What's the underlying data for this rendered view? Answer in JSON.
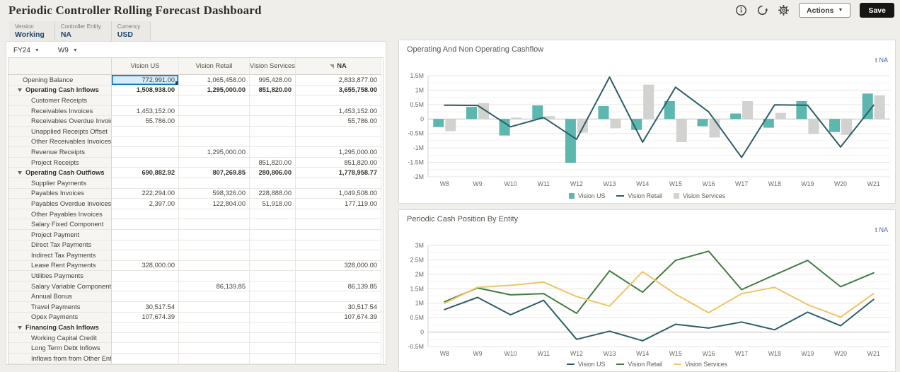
{
  "header": {
    "title": "Periodic Controller Rolling Forecast Dashboard",
    "actions_label": "Actions",
    "save_label": "Save"
  },
  "pov": {
    "fields": [
      {
        "label": "Version",
        "value": "Working"
      },
      {
        "label": "Controller Entity",
        "value": "NA"
      },
      {
        "label": "Currency",
        "value": "USD"
      }
    ]
  },
  "grid": {
    "year_selector": "FY24",
    "week_selector": "W9",
    "columns": [
      "Vision US",
      "Vision Retail",
      "Vision Services",
      "NA"
    ],
    "rows": [
      {
        "label": "Opening Balance",
        "type": "plain",
        "selected_col": 0,
        "values": [
          "772,991.00",
          "1,065,458.00",
          "995,428.00",
          "2,833,877.00"
        ]
      },
      {
        "label": "Operating Cash Inflows",
        "type": "parent",
        "values": [
          "1,508,938.00",
          "1,295,000.00",
          "851,820.00",
          "3,655,758.00"
        ]
      },
      {
        "label": "Customer Receipts",
        "type": "child",
        "values": [
          "",
          "",
          "",
          ""
        ]
      },
      {
        "label": "Receivables Invoices",
        "type": "child",
        "values": [
          "1,453,152.00",
          "",
          "",
          "1,453,152.00"
        ]
      },
      {
        "label": "Receivables Overdue Invoices",
        "type": "child",
        "values": [
          "55,786.00",
          "",
          "",
          "55,786.00"
        ]
      },
      {
        "label": "Unapplied Receipts Offset",
        "type": "child",
        "values": [
          "",
          "",
          "",
          ""
        ]
      },
      {
        "label": "Other Receivables Invoices",
        "type": "child",
        "values": [
          "",
          "",
          "",
          ""
        ]
      },
      {
        "label": "Revenue Receipts",
        "type": "child",
        "values": [
          "",
          "1,295,000.00",
          "",
          "1,295,000.00"
        ]
      },
      {
        "label": "Project Receipts",
        "type": "child",
        "values": [
          "",
          "",
          "851,820.00",
          "851,820.00"
        ]
      },
      {
        "label": "Operating Cash Outflows",
        "type": "parent",
        "values": [
          "690,882.92",
          "807,269.85",
          "280,806.00",
          "1,778,958.77"
        ]
      },
      {
        "label": "Supplier Payments",
        "type": "child",
        "values": [
          "",
          "",
          "",
          ""
        ]
      },
      {
        "label": "Payables Invoices",
        "type": "child",
        "values": [
          "222,294.00",
          "598,326.00",
          "228,888.00",
          "1,049,508.00"
        ]
      },
      {
        "label": "Payables Overdue Invoices",
        "type": "child",
        "values": [
          "2,397.00",
          "122,804.00",
          "51,918.00",
          "177,119.00"
        ]
      },
      {
        "label": "Other Payables Invoices",
        "type": "child",
        "values": [
          "",
          "",
          "",
          ""
        ]
      },
      {
        "label": "Salary Fixed Component",
        "type": "child",
        "values": [
          "",
          "",
          "",
          ""
        ]
      },
      {
        "label": "Project Payment",
        "type": "child",
        "values": [
          "",
          "",
          "",
          ""
        ]
      },
      {
        "label": "Direct Tax Payments",
        "type": "child",
        "values": [
          "",
          "",
          "",
          ""
        ]
      },
      {
        "label": "Indirect Tax Payments",
        "type": "child",
        "values": [
          "",
          "",
          "",
          ""
        ]
      },
      {
        "label": "Lease Rent Payments",
        "type": "child",
        "values": [
          "328,000.00",
          "",
          "",
          "328,000.00"
        ]
      },
      {
        "label": "Utilities Payments",
        "type": "child",
        "values": [
          "",
          "",
          "",
          ""
        ]
      },
      {
        "label": "Salary Variable Component",
        "type": "child",
        "values": [
          "",
          "86,139.85",
          "",
          "86,139.85"
        ]
      },
      {
        "label": "Annual Bonus",
        "type": "child",
        "values": [
          "",
          "",
          "",
          ""
        ]
      },
      {
        "label": "Travel Payments",
        "type": "child",
        "values": [
          "30,517.54",
          "",
          "",
          "30,517.54"
        ]
      },
      {
        "label": "Opex Payments",
        "type": "child",
        "values": [
          "107,674.39",
          "",
          "",
          "107,674.39"
        ]
      },
      {
        "label": "Financing Cash Inflows",
        "type": "parent",
        "values": [
          "",
          "",
          "",
          ""
        ]
      },
      {
        "label": "Working Capital Credit",
        "type": "child",
        "values": [
          "",
          "",
          "",
          ""
        ]
      },
      {
        "label": "Long Term Debt Inflows",
        "type": "child",
        "values": [
          "",
          "",
          "",
          ""
        ]
      },
      {
        "label": "Inflows from from Other Entities",
        "type": "child",
        "values": [
          "",
          "",
          "",
          ""
        ]
      }
    ]
  },
  "chart_data": [
    {
      "type": "bar",
      "subtype": "combo-bar-line",
      "title": "Operating And Non Operating Cashflow",
      "link": "NA",
      "link_prefix": "t",
      "unit": "M",
      "categories": [
        "W8",
        "W9",
        "W10",
        "W11",
        "W12",
        "W13",
        "W14",
        "W15",
        "W16",
        "W17",
        "W18",
        "W19",
        "W20",
        "W21"
      ],
      "ylim": [
        -2,
        1.5
      ],
      "y_ticks": [
        "1.5M",
        "1M",
        "0.5M",
        "0",
        "-0.5M",
        "-1M",
        "-1.5M",
        "-2M"
      ],
      "grid": true,
      "legend_position": "bottom",
      "series": [
        {
          "name": "Vision US",
          "kind": "bar",
          "color": "#5cb7ae",
          "values": [
            -0.28,
            0.42,
            -0.57,
            0.47,
            -1.52,
            0.45,
            -0.38,
            0.62,
            -0.25,
            0.19,
            -0.3,
            0.62,
            -0.45,
            0.88
          ]
        },
        {
          "name": "Vision Retail",
          "kind": "line",
          "color": "#2b5f66",
          "values": [
            0.48,
            0.47,
            -0.27,
            0.05,
            -0.7,
            1.45,
            -0.8,
            1.1,
            0.25,
            -1.33,
            0.49,
            0.48,
            -0.97,
            0.48
          ]
        },
        {
          "name": "Vision Services",
          "kind": "bar",
          "color": "#d2d2d0",
          "values": [
            -0.42,
            0.55,
            0.05,
            0.1,
            -0.47,
            -0.32,
            1.19,
            -0.8,
            -0.64,
            0.62,
            0.21,
            -0.52,
            -0.55,
            0.82
          ]
        }
      ]
    },
    {
      "type": "line",
      "title": "Periodic Cash Position By Entity",
      "link": "NA",
      "link_prefix": "t",
      "unit": "M",
      "categories": [
        "W8",
        "W9",
        "W10",
        "W11",
        "W12",
        "W13",
        "W14",
        "W15",
        "W16",
        "W17",
        "W18",
        "W19",
        "W20",
        "W21"
      ],
      "ylim": [
        -0.5,
        3
      ],
      "y_ticks": [
        "3M",
        "2.5M",
        "2M",
        "1.5M",
        "1M",
        "0.5M",
        "0",
        "-0.5M"
      ],
      "grid": true,
      "legend_position": "bottom",
      "series": [
        {
          "name": "Vision US",
          "kind": "line",
          "color": "#2b5f66",
          "values": [
            0.78,
            1.2,
            0.6,
            1.1,
            -0.25,
            0.03,
            -0.3,
            0.27,
            0.14,
            0.35,
            0.08,
            0.69,
            0.22,
            1.13
          ]
        },
        {
          "name": "Vision Retail",
          "kind": "line",
          "color": "#3f7d44",
          "values": [
            1.05,
            1.53,
            1.29,
            1.33,
            0.65,
            2.12,
            1.38,
            2.48,
            2.8,
            1.47,
            1.98,
            2.48,
            1.57,
            2.05
          ]
        },
        {
          "name": "Vision Services",
          "kind": "line",
          "color": "#f2c267",
          "values": [
            1.0,
            1.55,
            1.62,
            1.73,
            1.23,
            0.9,
            2.09,
            1.31,
            0.67,
            1.33,
            1.55,
            0.95,
            0.52,
            1.33
          ]
        }
      ]
    }
  ],
  "colors": {
    "accent_teal": "#5cb7ae",
    "dark_teal": "#2b5f66",
    "neutral_gray": "#d2d2d0",
    "green": "#3f7d44",
    "yellow": "#f2c267",
    "selected_cell_fill": "#d8ecf9",
    "selected_cell_border": "#0f7ac8",
    "link_blue": "#4a5da8",
    "pov_value_navy": "#1e4667"
  }
}
